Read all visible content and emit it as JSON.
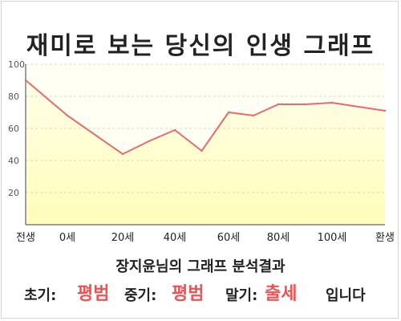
{
  "title": "재미로 보는 당신의 인생 그래프",
  "summary": {
    "heading": "장지윤님의 그래프 분석결과",
    "early_label": "초기:",
    "early_value": "평범",
    "mid_label": "중기:",
    "mid_value": "평범",
    "late_label": "말기:",
    "late_value": "출세",
    "closing": "입니다"
  },
  "colors": {
    "line": "#e86a6a",
    "fill_bottom": "#fffdb8",
    "fill_top": "#ffffe8",
    "plot_bg": "#fffff4",
    "highlight": "#f05252"
  },
  "chart_data": {
    "type": "area",
    "x_categories": [
      "전생",
      "0세",
      "20세",
      "40세",
      "60세",
      "80세",
      "100세",
      "환생"
    ],
    "series": [
      {
        "values": [
          {
            "x": "전생",
            "y": 90
          },
          {
            "x": "0세",
            "y": 68
          },
          {
            "x": "20세",
            "y": 44
          },
          {
            "x": "30세",
            "y": 52
          },
          {
            "x": "40세",
            "y": 59
          },
          {
            "x": "50세",
            "y": 46
          },
          {
            "x": "60세",
            "y": 70
          },
          {
            "x": "70세",
            "y": 68
          },
          {
            "x": "80세",
            "y": 75
          },
          {
            "x": "90세",
            "y": 75
          },
          {
            "x": "100세",
            "y": 76
          },
          {
            "x": "환생",
            "y": 71
          }
        ]
      }
    ],
    "y_ticks": [
      20,
      40,
      60,
      80,
      100
    ],
    "ylim": [
      0,
      100
    ],
    "grid": "horizontal dashed",
    "legend": "none"
  }
}
